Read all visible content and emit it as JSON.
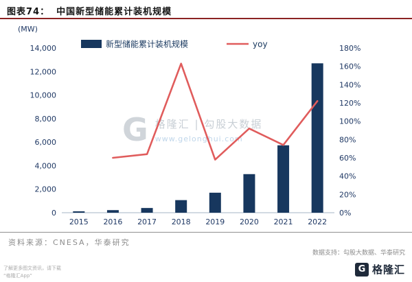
{
  "header": {
    "label": "图表74：",
    "title": "中国新型储能累计装机规模"
  },
  "chart": {
    "unit_label": "(MW)",
    "legend": [
      {
        "label": "新型储能累计装机规模",
        "type": "bar",
        "color": "#17375e"
      },
      {
        "label": "yoy",
        "type": "line",
        "color": "#e05c5c"
      }
    ]
  },
  "chart_data": {
    "type": "bar",
    "title": "中国新型储能累计装机规模",
    "categories": [
      "2015",
      "2016",
      "2017",
      "2018",
      "2019",
      "2020",
      "2021",
      "2022"
    ],
    "series": [
      {
        "name": "新型储能累计装机规模",
        "type": "bar",
        "axis": "left",
        "color": "#17375e",
        "values": [
          100,
          220,
          400,
          1070,
          1700,
          3280,
          5730,
          12700
        ]
      },
      {
        "name": "yoy",
        "type": "line",
        "axis": "right",
        "color": "#e05c5c",
        "values": [
          null,
          60,
          64,
          163,
          58,
          92,
          74,
          122
        ]
      }
    ],
    "xlabel": "",
    "ylabel": "(MW)",
    "left_axis": {
      "min": 0,
      "max": 14000,
      "step": 2000,
      "tick_labels": [
        "0",
        "2,000",
        "4,000",
        "6,000",
        "8,000",
        "10,000",
        "12,000",
        "14,000"
      ]
    },
    "right_axis": {
      "min": 0,
      "max": 180,
      "step": 20,
      "tick_labels": [
        "0%",
        "20%",
        "40%",
        "60%",
        "80%",
        "100%",
        "120%",
        "140%",
        "160%",
        "180%"
      ]
    },
    "grid": false,
    "legend_position": "top"
  },
  "watermark": {
    "logo_letter": "G",
    "line1": "格隆汇 | 勾股大数据",
    "url": "www.gelonghui.com"
  },
  "footer": {
    "source": "资料来源：CNESA，华泰研究",
    "data_support": "数据支持：勾股大数据、华泰研究",
    "promo_line1": "了解更多图文资讯，请下载",
    "promo_line2": "“格隆汇App”",
    "logo_letter": "G",
    "logo_text": "格隆汇"
  }
}
